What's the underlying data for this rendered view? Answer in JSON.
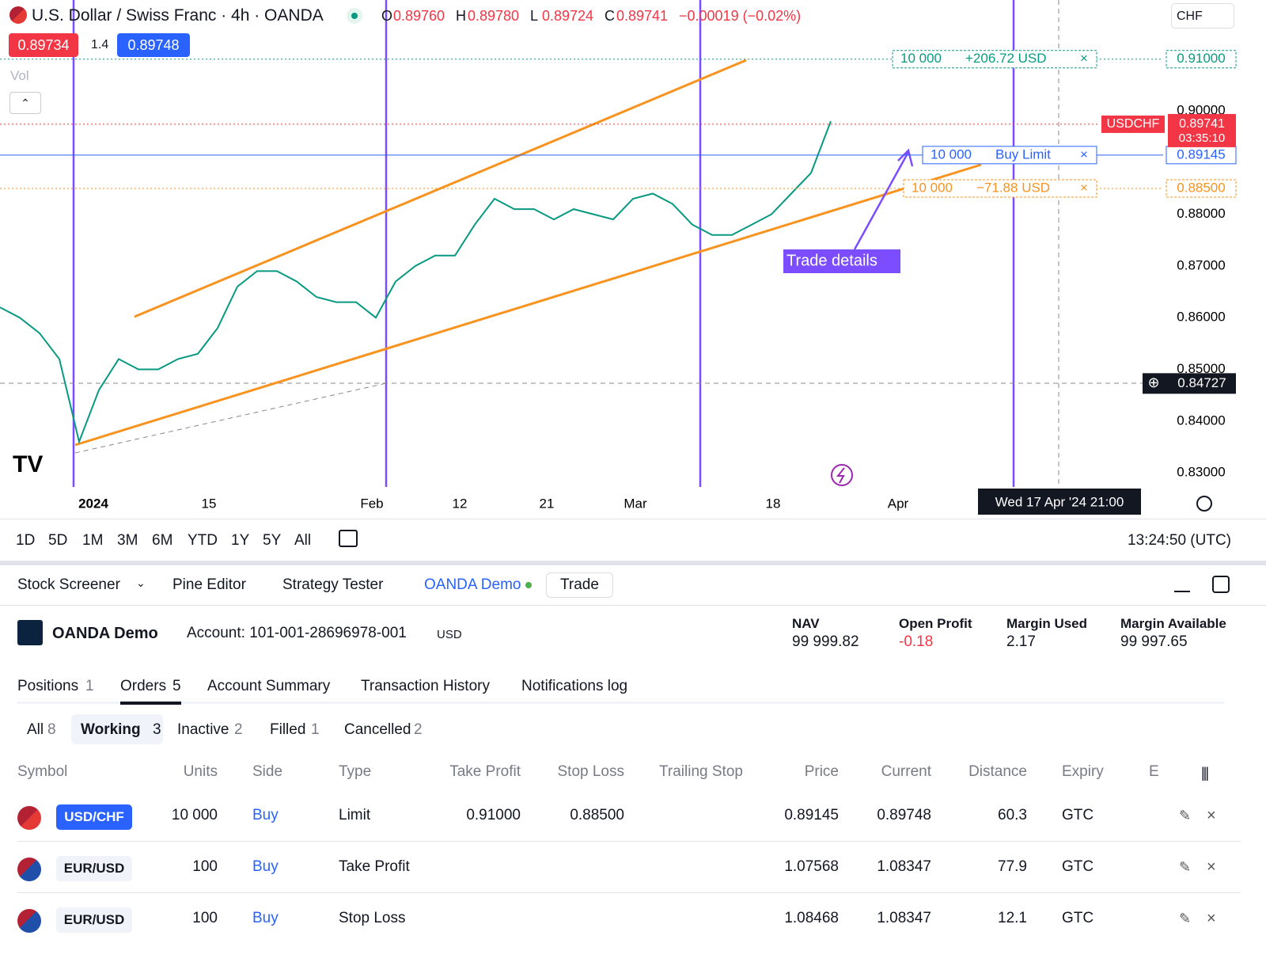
{
  "header": {
    "symbol_title": "U.S. Dollar / Swiss Franc · 4h · OANDA",
    "ohlc": [
      {
        "label": "O",
        "value": "0.89760"
      },
      {
        "label": "H",
        "value": "0.89780"
      },
      {
        "label": "L",
        "value": "0.89724"
      },
      {
        "label": "C",
        "value": "0.89741"
      }
    ],
    "change": "−0.00019 (−0.02%)",
    "sell": "0.89734",
    "spread": "1.4",
    "buy": "0.89748",
    "vol": "Vol",
    "currency": "CHF"
  },
  "chart": {
    "price_labels": [
      "0.90000",
      "0.88000",
      "0.87000",
      "0.86000",
      "0.85000",
      "0.84000",
      "0.83000"
    ],
    "time_labels": [
      "2024",
      "15",
      "Feb",
      "12",
      "21",
      "Mar",
      "18",
      "Apr"
    ],
    "price_line": [
      0.862,
      0.86,
      0.857,
      0.852,
      0.836,
      0.846,
      0.852,
      0.85,
      0.85,
      0.852,
      0.853,
      0.858,
      0.866,
      0.869,
      0.869,
      0.867,
      0.864,
      0.863,
      0.863,
      0.86,
      0.867,
      0.87,
      0.872,
      0.872,
      0.878,
      0.883,
      0.881,
      0.881,
      0.879,
      0.881,
      0.88,
      0.879,
      0.883,
      0.884,
      0.882,
      0.878,
      0.876,
      0.876,
      0.878,
      0.88,
      0.884,
      0.888,
      0.898
    ],
    "take_profit": {
      "qty": "10 000",
      "pnl": "+206.72 USD",
      "price": "0.91000"
    },
    "buy_limit": {
      "qty": "10 000",
      "label": "Buy Limit",
      "price": "0.89145"
    },
    "stop_loss": {
      "qty": "10 000",
      "pnl": "−71.88 USD",
      "price": "0.88500"
    },
    "last": {
      "symbol": "USDCHF",
      "price": "0.89741",
      "countdown": "03:35:10"
    },
    "crosshair_price": "0.84727",
    "crosshair_date": "Wed 17 Apr '24   21:00",
    "annotation": "Trade details"
  },
  "range_bar": {
    "ranges": [
      "1D",
      "5D",
      "1M",
      "3M",
      "6M",
      "YTD",
      "1Y",
      "5Y",
      "All"
    ],
    "clock": "13:24:50 (UTC)"
  },
  "panel": {
    "tabs": [
      "Stock Screener",
      "Pine Editor",
      "Strategy Tester",
      "OANDA Demo",
      "Trade"
    ],
    "account": {
      "name": "OANDA Demo",
      "number": "Account: 101-001-28696978-001",
      "currency": "USD",
      "stats": [
        {
          "label": "NAV",
          "value": "99 999.82"
        },
        {
          "label": "Open Profit",
          "value": "-0.18"
        },
        {
          "label": "Margin Used",
          "value": "2.17"
        },
        {
          "label": "Margin Available",
          "value": "99 997.65"
        }
      ]
    },
    "subtabs": [
      {
        "label": "Positions",
        "count": "1"
      },
      {
        "label": "Orders",
        "count": "5"
      },
      {
        "label": "Account Summary"
      },
      {
        "label": "Transaction History"
      },
      {
        "label": "Notifications log"
      }
    ],
    "filters": [
      {
        "label": "All",
        "count": "8"
      },
      {
        "label": "Working",
        "count": "3"
      },
      {
        "label": "Inactive",
        "count": "2"
      },
      {
        "label": "Filled",
        "count": "1"
      },
      {
        "label": "Cancelled",
        "count": "2"
      }
    ],
    "columns": [
      "Symbol",
      "Units",
      "Side",
      "Type",
      "Take Profit",
      "Stop Loss",
      "Trailing Stop",
      "Price",
      "Current",
      "Distance",
      "Expiry",
      "E"
    ],
    "rows": [
      {
        "symbol": "USD/CHF",
        "units": "10 000",
        "side": "Buy",
        "type": "Limit",
        "take_profit": "0.91000",
        "stop_loss": "0.88500",
        "price": "0.89145",
        "current": "0.89748",
        "distance": "60.3",
        "expiry": "GTC"
      },
      {
        "symbol": "EUR/USD",
        "units": "100",
        "side": "Buy",
        "type": "Take Profit",
        "price": "1.07568",
        "current": "1.08347",
        "distance": "77.9",
        "expiry": "GTC"
      },
      {
        "symbol": "EUR/USD",
        "units": "100",
        "side": "Buy",
        "type": "Stop Loss",
        "price": "1.08468",
        "current": "1.08347",
        "distance": "12.1",
        "expiry": "GTC"
      }
    ]
  }
}
